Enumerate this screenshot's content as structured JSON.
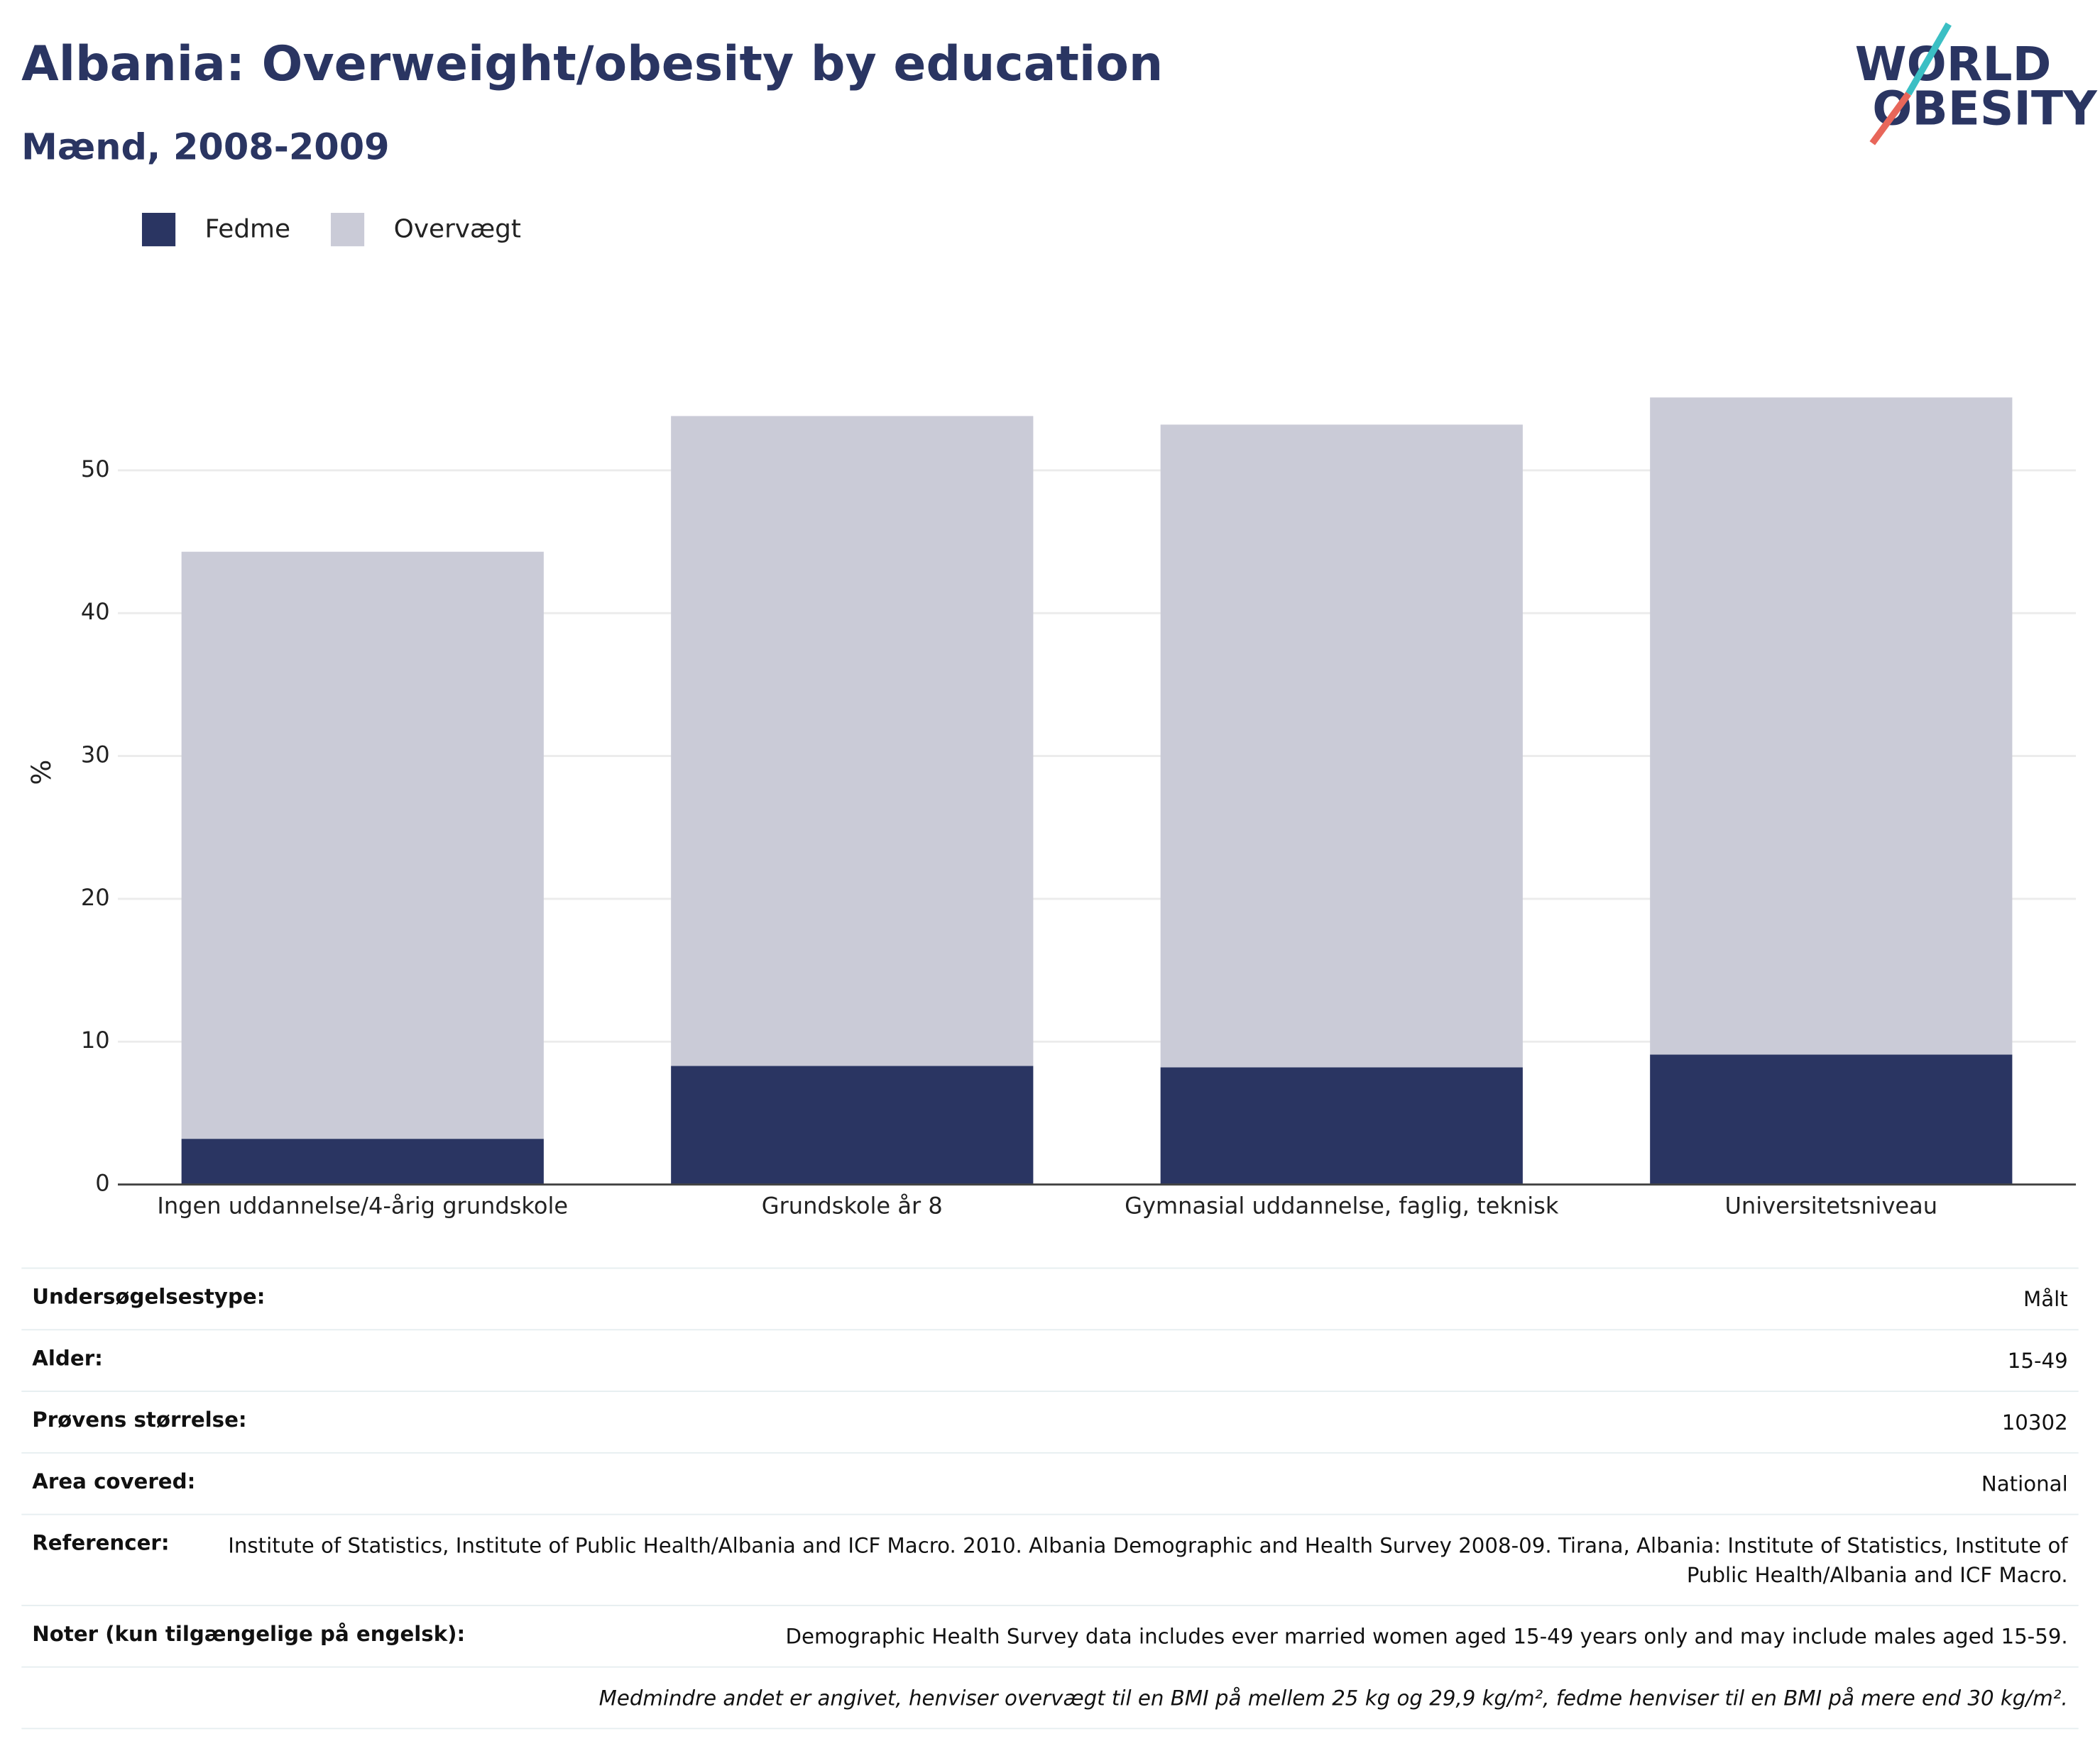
{
  "chart_data": {
    "type": "stacked-bar",
    "title": "Albania: Overweight/obesity by education",
    "subtitle": "Mænd, 2008-2009",
    "ylabel": "%",
    "categories": [
      "Ingen uddannelse/4-årig grundskole",
      "Grundskole år 8",
      "Gymnasial uddannelse, faglig, teknisk",
      "Universitetsniveau"
    ],
    "series": [
      {
        "name": "Fedme",
        "color": "#2a3562",
        "values": [
          3.2,
          8.3,
          8.2,
          9.1
        ]
      },
      {
        "name": "Overvægt",
        "color": "#cacbd7",
        "values": [
          41.1,
          45.5,
          45.0,
          46.0
        ]
      }
    ],
    "ylim": [
      0,
      58
    ],
    "yticks": [
      0,
      10,
      20,
      30,
      40,
      50
    ],
    "grid": true
  },
  "logo": [
    "WORLD",
    "OBESITY"
  ],
  "info": [
    {
      "label": "Undersøgelsestype:",
      "value": "Målt"
    },
    {
      "label": "Alder:",
      "value": "15-49"
    },
    {
      "label": "Prøvens størrelse:",
      "value": "10302"
    },
    {
      "label": "Area covered:",
      "value": "National"
    },
    {
      "label": "Referencer:",
      "value": "Institute of Statistics, Institute of Public Health/Albania and ICF Macro. 2010. Albania Demographic and Health Survey 2008-09. Tirana, Albania: Institute of Statistics, Institute of Public Health/Albania and ICF Macro."
    },
    {
      "label": "Noter (kun tilgængelige på engelsk):",
      "value": "Demographic Health Survey data includes ever married women aged 15-49 years only and may include males aged 15-59."
    }
  ],
  "footnote": "Medmindre andet er angivet, henviser overvægt til en BMI på mellem 25 kg og 29,9 kg/m², fedme henviser til en BMI på mere end 30 kg/m²."
}
